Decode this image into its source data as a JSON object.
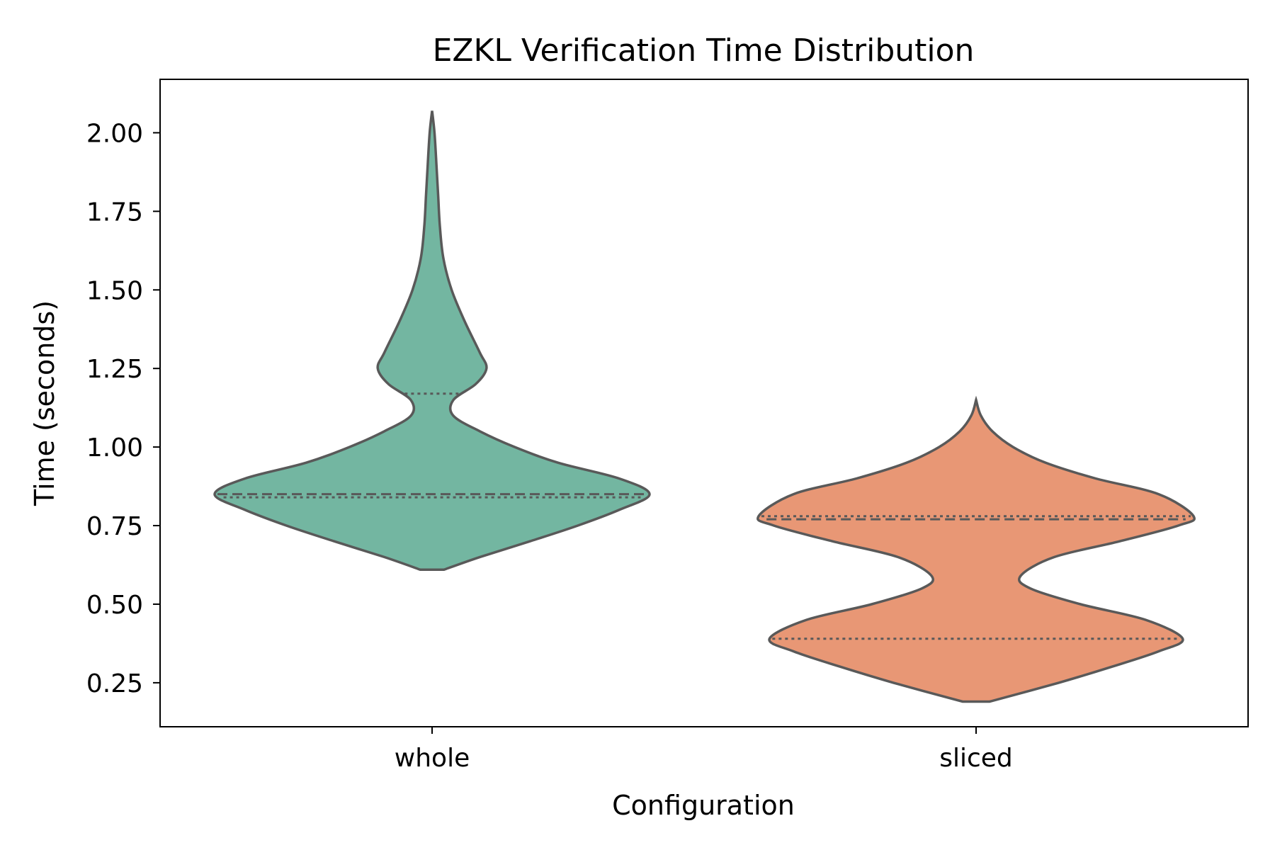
{
  "chart_data": {
    "type": "violin",
    "title": "EZKL Verification Time Distribution",
    "xlabel": "Configuration",
    "ylabel": "Time (seconds)",
    "categories": [
      "whole",
      "sliced"
    ],
    "ylim": [
      0.11,
      2.17
    ],
    "yticks": [
      "0.25",
      "0.50",
      "0.75",
      "1.00",
      "1.25",
      "1.50",
      "1.75",
      "2.00"
    ],
    "grid": false,
    "inner": "quartile",
    "series": [
      {
        "category": "whole",
        "color": "#73b6a1",
        "min": 0.61,
        "max": 2.07,
        "quartiles": {
          "q1": 0.84,
          "median": 0.85,
          "q3": 1.17
        },
        "density": [
          [
            0.61,
            0.055
          ],
          [
            0.65,
            0.22
          ],
          [
            0.7,
            0.45
          ],
          [
            0.75,
            0.67
          ],
          [
            0.8,
            0.86
          ],
          [
            0.85,
            1.0
          ],
          [
            0.9,
            0.86
          ],
          [
            0.95,
            0.58
          ],
          [
            1.0,
            0.38
          ],
          [
            1.05,
            0.22
          ],
          [
            1.1,
            0.097
          ],
          [
            1.15,
            0.098
          ],
          [
            1.2,
            0.2
          ],
          [
            1.25,
            0.25
          ],
          [
            1.3,
            0.22
          ],
          [
            1.4,
            0.15
          ],
          [
            1.5,
            0.09
          ],
          [
            1.6,
            0.052
          ],
          [
            1.7,
            0.036
          ],
          [
            1.8,
            0.028
          ],
          [
            1.9,
            0.02
          ],
          [
            2.0,
            0.011
          ],
          [
            2.07,
            0.0
          ]
        ]
      },
      {
        "category": "sliced",
        "color": "#e89775",
        "min": 0.19,
        "max": 1.15,
        "quartiles": {
          "q1": 0.39,
          "median": 0.77,
          "q3": 0.78
        },
        "density": [
          [
            0.19,
            0.062
          ],
          [
            0.25,
            0.38
          ],
          [
            0.3,
            0.62
          ],
          [
            0.35,
            0.84
          ],
          [
            0.39,
            0.95
          ],
          [
            0.45,
            0.78
          ],
          [
            0.5,
            0.48
          ],
          [
            0.55,
            0.25
          ],
          [
            0.59,
            0.205
          ],
          [
            0.65,
            0.36
          ],
          [
            0.7,
            0.66
          ],
          [
            0.75,
            0.93
          ],
          [
            0.78,
            1.0
          ],
          [
            0.85,
            0.84
          ],
          [
            0.9,
            0.55
          ],
          [
            0.95,
            0.32
          ],
          [
            1.0,
            0.17
          ],
          [
            1.05,
            0.075
          ],
          [
            1.1,
            0.022
          ],
          [
            1.15,
            0.0
          ]
        ]
      }
    ]
  }
}
